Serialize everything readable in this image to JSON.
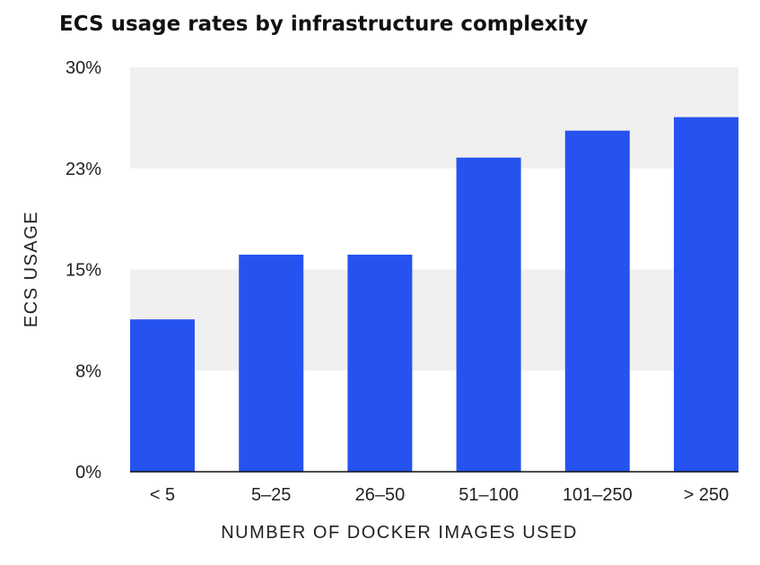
{
  "chart_data": {
    "type": "bar",
    "title": "ECS usage rates by infrastructure complexity",
    "xlabel": "NUMBER OF DOCKER IMAGES USED",
    "ylabel": "ECS USAGE",
    "categories": [
      "< 5",
      "5–25",
      "26–50",
      "51–100",
      "101–250",
      "> 250"
    ],
    "values": [
      11.3,
      16.1,
      16.1,
      23.3,
      25.3,
      26.3
    ],
    "value_unit": "%",
    "yticks": [
      {
        "value": 0,
        "label": "0%"
      },
      {
        "value": 7.5,
        "label": "8%"
      },
      {
        "value": 15,
        "label": "15%"
      },
      {
        "value": 22.5,
        "label": "23%"
      },
      {
        "value": 30,
        "label": "30%"
      }
    ],
    "ylim": [
      0,
      30
    ],
    "grid": "alternating horizontal bands",
    "legend": "none",
    "colors": {
      "bar": "#2653f0",
      "band": "#f0f0f0",
      "baseline": "#111111"
    }
  }
}
